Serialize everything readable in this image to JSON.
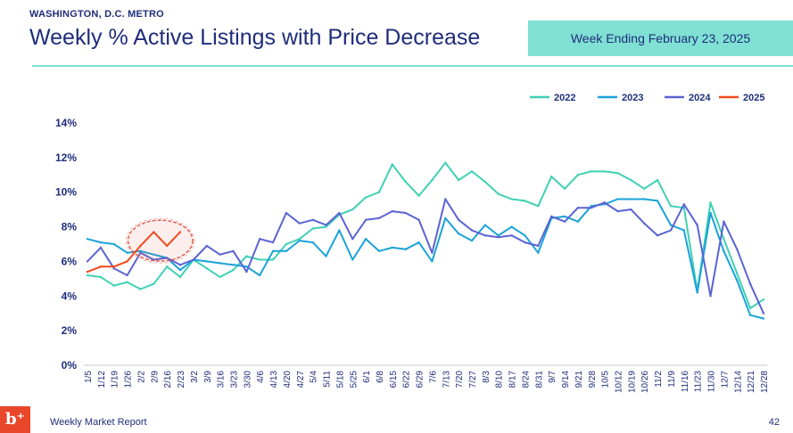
{
  "header": {
    "region": "WASHINGTON, D.C. METRO",
    "title": "Weekly % Active Listings with Price Decrease",
    "week_ending": "Week Ending February 23, 2025"
  },
  "footer": {
    "logo_glyph": "b⁺",
    "label": "Weekly Market Report",
    "page_number": "42"
  },
  "chart_data": {
    "type": "line",
    "title": "",
    "xlabel": "",
    "ylabel": "",
    "ylim": [
      0,
      14
    ],
    "yticks": [
      "0%",
      "2%",
      "4%",
      "6%",
      "8%",
      "10%",
      "12%",
      "14%"
    ],
    "grid": false,
    "legend_position": "top-right",
    "categories": [
      "1/5",
      "1/12",
      "1/19",
      "1/26",
      "2/2",
      "2/9",
      "2/16",
      "2/23",
      "3/2",
      "3/9",
      "3/16",
      "3/23",
      "3/30",
      "4/6",
      "4/13",
      "4/20",
      "4/27",
      "5/4",
      "5/11",
      "5/18",
      "5/25",
      "6/1",
      "6/8",
      "6/15",
      "6/22",
      "6/29",
      "7/6",
      "7/13",
      "7/20",
      "7/27",
      "8/3",
      "8/10",
      "8/17",
      "8/24",
      "8/31",
      "9/7",
      "9/14",
      "9/21",
      "9/28",
      "10/5",
      "10/12",
      "10/19",
      "10/26",
      "11/2",
      "11/9",
      "11/16",
      "11/23",
      "11/30",
      "12/7",
      "12/14",
      "12/21",
      "12/28"
    ],
    "highlight": {
      "category_start": "2/2",
      "category_end": "2/23",
      "color": "#e05545"
    },
    "series": [
      {
        "name": "2022",
        "color": "#3fd0b4",
        "values": [
          5.2,
          5.1,
          4.6,
          4.8,
          4.4,
          4.7,
          5.7,
          5.1,
          6.1,
          5.6,
          5.1,
          5.5,
          6.3,
          6.1,
          6.1,
          7.0,
          7.3,
          7.9,
          8.0,
          8.7,
          9.0,
          9.7,
          10.0,
          11.6,
          10.6,
          9.8,
          10.7,
          11.7,
          10.7,
          11.2,
          10.6,
          9.9,
          9.6,
          9.5,
          9.2,
          10.9,
          10.2,
          11.0,
          11.2,
          11.2,
          11.1,
          10.7,
          10.2,
          10.7,
          9.2,
          9.1,
          4.3,
          9.4,
          7.3,
          5.3,
          3.3,
          3.8
        ]
      },
      {
        "name": "2023",
        "color": "#1aa3d9",
        "values": [
          7.3,
          7.1,
          7.0,
          6.5,
          6.6,
          6.4,
          6.2,
          5.5,
          6.1,
          6.0,
          5.9,
          5.8,
          5.7,
          5.2,
          6.6,
          6.6,
          7.2,
          7.1,
          6.3,
          7.8,
          6.1,
          7.3,
          6.6,
          6.8,
          6.7,
          7.1,
          6.0,
          8.5,
          7.6,
          7.2,
          8.1,
          7.5,
          8.0,
          7.5,
          6.5,
          8.5,
          8.6,
          8.3,
          9.2,
          9.3,
          9.6,
          9.6,
          9.6,
          9.5,
          8.1,
          7.8,
          4.2,
          8.8,
          6.6,
          4.9,
          2.9,
          2.7
        ]
      },
      {
        "name": "2024",
        "color": "#5b63d3",
        "values": [
          6.0,
          6.8,
          5.6,
          5.2,
          6.5,
          6.1,
          6.2,
          5.8,
          6.1,
          6.9,
          6.4,
          6.6,
          5.4,
          7.3,
          7.1,
          8.8,
          8.2,
          8.4,
          8.1,
          8.8,
          7.3,
          8.4,
          8.5,
          8.9,
          8.8,
          8.4,
          6.5,
          9.6,
          8.4,
          7.8,
          7.5,
          7.4,
          7.5,
          7.1,
          6.9,
          8.6,
          8.3,
          9.1,
          9.1,
          9.4,
          8.9,
          9.0,
          8.2,
          7.5,
          7.8,
          9.3,
          8.1,
          4.0,
          8.3,
          6.7,
          4.7,
          3.0
        ]
      },
      {
        "name": "2025",
        "color": "#ef4a1f",
        "values": [
          5.4,
          5.7,
          5.7,
          6.0,
          6.9,
          7.7,
          6.9,
          7.7,
          null,
          null,
          null,
          null,
          null,
          null,
          null,
          null,
          null,
          null,
          null,
          null,
          null,
          null,
          null,
          null,
          null,
          null,
          null,
          null,
          null,
          null,
          null,
          null,
          null,
          null,
          null,
          null,
          null,
          null,
          null,
          null,
          null,
          null,
          null,
          null,
          null,
          null,
          null,
          null,
          null,
          null,
          null,
          null
        ]
      }
    ]
  }
}
